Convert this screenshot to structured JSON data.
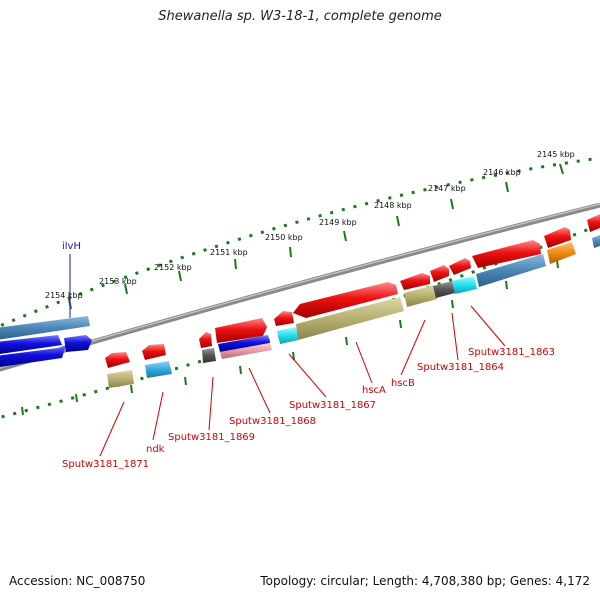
{
  "title": "Shewanella sp. W3-18-1, complete genome",
  "footer": {
    "accession": "Accession: NC_008750",
    "summary": "Topology: circular; Length: 4,708,380 bp; Genes: 4,172"
  },
  "scale_labels": [
    "2145 kbp",
    "2146 kbp",
    "2147 kbp",
    "2148 kbp",
    "2149 kbp",
    "2150 kbp",
    "2151 kbp",
    "2152 kbp",
    "2153 kbp",
    "2154 kbp"
  ],
  "gene_labels": {
    "ilvH": "ilvH",
    "sputw3181_1863": "Sputw3181_1863",
    "sputw3181_1864": "Sputw3181_1864",
    "hscB": "hscB",
    "hscA": "hscA",
    "sputw3181_1867": "Sputw3181_1867",
    "sputw3181_1868": "Sputw3181_1868",
    "sputw3181_1869": "Sputw3181_1869",
    "ndk": "ndk",
    "sputw3181_1871": "Sputw3181_1871"
  },
  "colors": {
    "backbone": "#888888",
    "tick": "#1a7a1a",
    "cds_red": "#ee1111",
    "blue_bright": "#1010dd",
    "steelblue": "#4a86b8",
    "khaki": "#b8b070",
    "cyan": "#22e0ee",
    "sky": "#33aadd",
    "orange": "#f08a10",
    "gray": "#555555",
    "pink": "#e898a0",
    "label_red": "#d40000",
    "label_blue": "#1a1aa8"
  }
}
